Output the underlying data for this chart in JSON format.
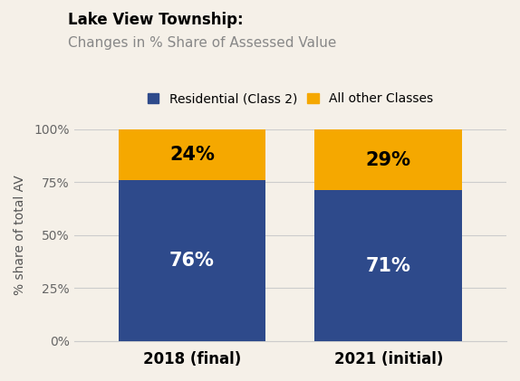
{
  "title_bold": "Lake View Township:",
  "title_sub": "Changes in % Share of Assessed Value",
  "categories": [
    "2018 (final)",
    "2021 (initial)"
  ],
  "residential": [
    76,
    71
  ],
  "other": [
    24,
    29
  ],
  "residential_color": "#2E4A8B",
  "other_color": "#F5A800",
  "residential_label": "Residential (Class 2)",
  "other_label": "All other Classes",
  "ylabel": "% share of total AV",
  "background_color": "#F5F0E8",
  "yticks": [
    0,
    25,
    50,
    75,
    100
  ],
  "yticklabels": [
    "0%",
    "25%",
    "50%",
    "75%",
    "100%"
  ],
  "bar_width": 0.75,
  "figsize": [
    5.74,
    4.21
  ],
  "dpi": 100
}
